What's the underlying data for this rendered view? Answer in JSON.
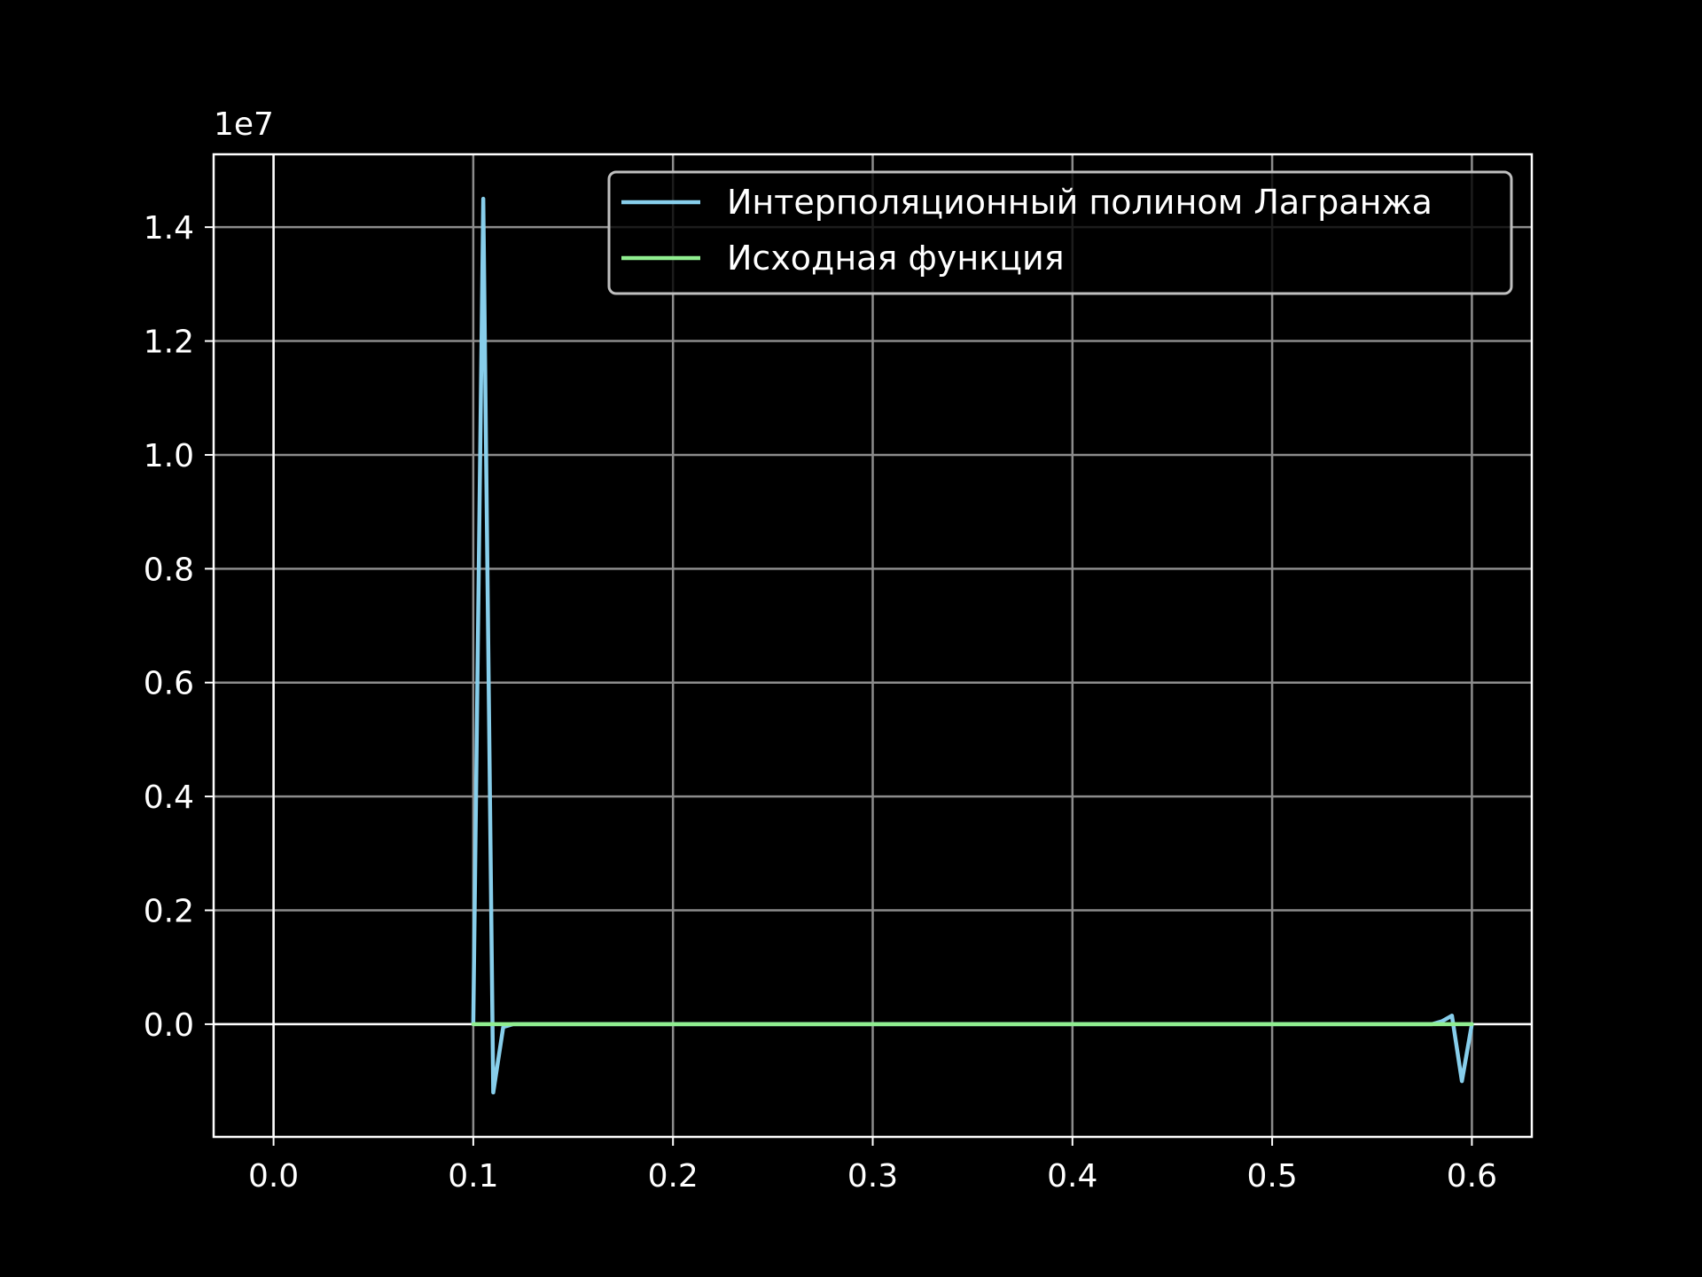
{
  "chart_data": {
    "type": "line",
    "title": "",
    "xlabel": "",
    "ylabel": "",
    "xlim": [
      -0.03,
      0.63
    ],
    "ylim": [
      -1980000,
      15280000
    ],
    "y_offset_label": "1e7",
    "y_scale": 10000000,
    "x_ticks": [
      0.0,
      0.1,
      0.2,
      0.3,
      0.4,
      0.5,
      0.6
    ],
    "x_tick_labels": [
      "0.0",
      "0.1",
      "0.2",
      "0.3",
      "0.4",
      "0.5",
      "0.6"
    ],
    "y_ticks": [
      0,
      2000000,
      4000000,
      6000000,
      8000000,
      10000000,
      12000000,
      14000000
    ],
    "y_tick_labels": [
      "0.0",
      "0.2",
      "0.4",
      "0.6",
      "0.8",
      "1.0",
      "1.2",
      "1.4"
    ],
    "grid": true,
    "axis_lines_at_zero": true,
    "legend_position": "upper right",
    "background": "#000000",
    "series": [
      {
        "name": "Интерполяционный полином Лагранжа",
        "color": "#87ceeb",
        "x": [
          0.1,
          0.105,
          0.11,
          0.115,
          0.12,
          0.2,
          0.3,
          0.4,
          0.5,
          0.58,
          0.585,
          0.59,
          0.595,
          0.6
        ],
        "y": [
          0,
          14500000,
          -1200000,
          -50000,
          0,
          0,
          0,
          0,
          0,
          0,
          50000,
          150000,
          -1000000,
          0
        ]
      },
      {
        "name": "Исходная функция",
        "color": "#90ee90",
        "x": [
          0.1,
          0.2,
          0.3,
          0.4,
          0.5,
          0.6
        ],
        "y": [
          0,
          0,
          0,
          0,
          0,
          0
        ]
      }
    ]
  }
}
